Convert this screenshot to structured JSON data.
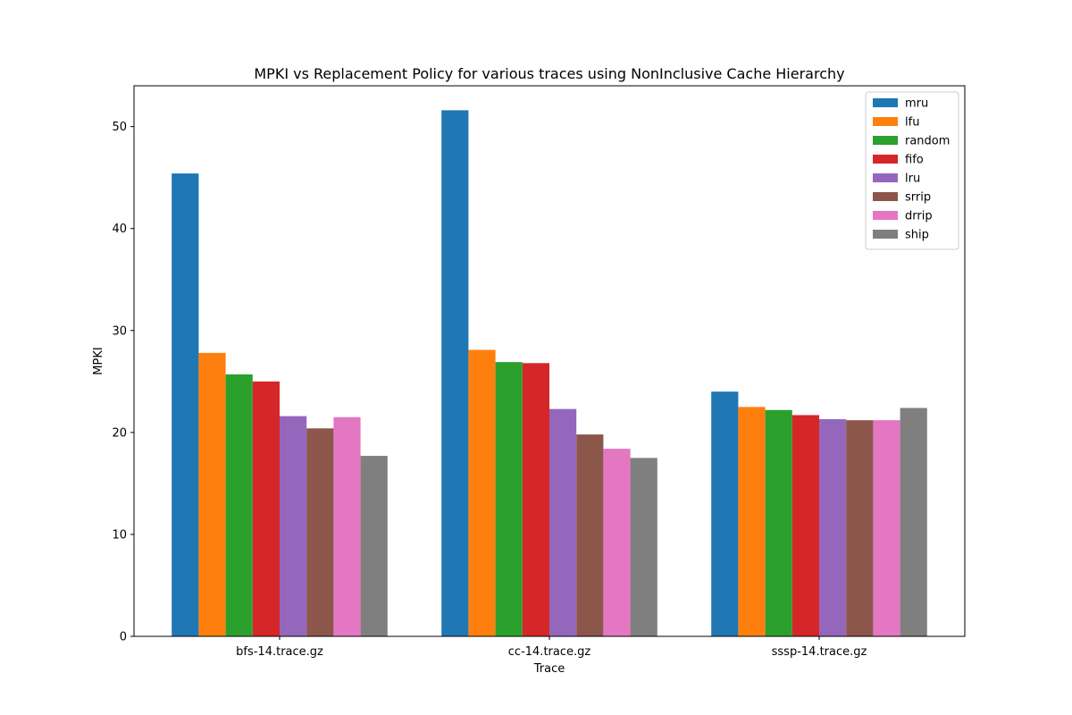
{
  "chart_data": {
    "type": "bar",
    "title": "MPKI vs Replacement Policy for various traces using NonInclusive Cache Hierarchy",
    "xlabel": "Trace",
    "ylabel": "MPKI",
    "ylim": [
      0,
      54
    ],
    "yticks": [
      0,
      10,
      20,
      30,
      40,
      50
    ],
    "categories": [
      "bfs-14.trace.gz",
      "cc-14.trace.gz",
      "sssp-14.trace.gz"
    ],
    "legend_position": "top-right",
    "grid": false,
    "series": [
      {
        "name": "mru",
        "color": "#1f77b4",
        "values": [
          45.4,
          51.6,
          24.0
        ]
      },
      {
        "name": "lfu",
        "color": "#ff7f0e",
        "values": [
          27.8,
          28.1,
          22.5
        ]
      },
      {
        "name": "random",
        "color": "#2ca02c",
        "values": [
          25.7,
          26.9,
          22.2
        ]
      },
      {
        "name": "fifo",
        "color": "#d62728",
        "values": [
          25.0,
          26.8,
          21.7
        ]
      },
      {
        "name": "lru",
        "color": "#9467bd",
        "values": [
          21.6,
          22.3,
          21.3
        ]
      },
      {
        "name": "srrip",
        "color": "#8c564b",
        "values": [
          20.4,
          19.8,
          21.2
        ]
      },
      {
        "name": "drrip",
        "color": "#e377c2",
        "values": [
          21.5,
          18.4,
          21.2
        ]
      },
      {
        "name": "ship",
        "color": "#7f7f7f",
        "values": [
          17.7,
          17.5,
          22.4
        ]
      }
    ]
  }
}
